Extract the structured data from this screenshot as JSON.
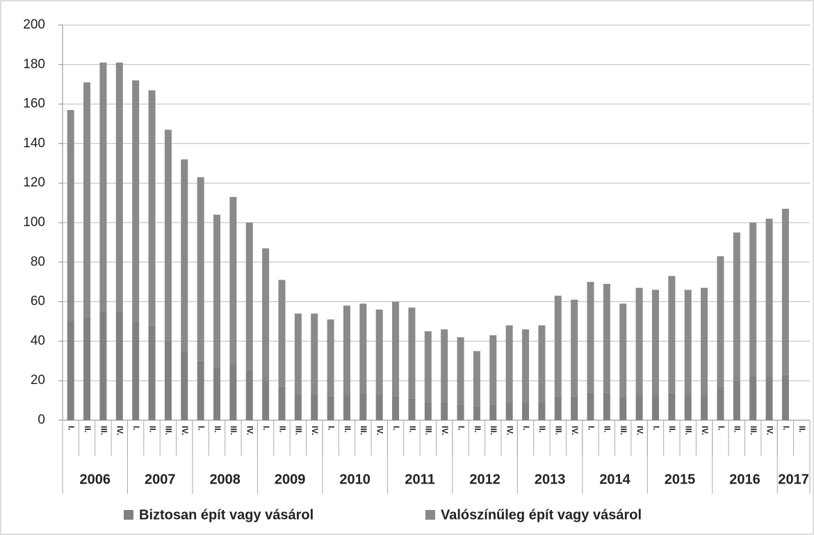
{
  "chart_data": {
    "type": "stacked-bar",
    "categories": [
      "I.",
      "II.",
      "III.",
      "IV.",
      "I.",
      "II.",
      "III.",
      "IV.",
      "I.",
      "II.",
      "III.",
      "IV.",
      "I.",
      "II.",
      "III.",
      "IV.",
      "I.",
      "II.",
      "III.",
      "IV.",
      "I.",
      "II.",
      "III.",
      "IV.",
      "I.",
      "II.",
      "III.",
      "IV.",
      "I.",
      "II.",
      "III.",
      "IV.",
      "I.",
      "II.",
      "III.",
      "IV.",
      "I.",
      "II.",
      "III.",
      "IV.",
      "I.",
      "II.",
      "III.",
      "IV.",
      "I.",
      "II."
    ],
    "years": [
      "2006",
      "2007",
      "2008",
      "2009",
      "2010",
      "2011",
      "2012",
      "2013",
      "2014",
      "2015",
      "2016",
      "2017"
    ],
    "series": [
      {
        "name": "Biztosan épít vagy vásárol",
        "color": "#808080",
        "values": [
          50,
          52,
          55,
          55,
          50,
          48,
          40,
          35,
          30,
          27,
          28,
          25,
          20,
          17,
          13,
          13,
          12,
          13,
          14,
          13,
          12,
          11,
          9,
          9,
          8,
          7,
          8,
          9,
          9,
          9,
          12,
          12,
          14,
          14,
          12,
          13,
          13,
          14,
          13,
          13,
          17,
          20,
          22,
          22,
          23,
          null
        ]
      },
      {
        "name": "Valószínűleg épít vagy vásárol",
        "color": "#8a8a8a",
        "values": [
          107,
          119,
          126,
          126,
          122,
          119,
          107,
          97,
          93,
          77,
          85,
          75,
          67,
          54,
          41,
          41,
          39,
          45,
          45,
          43,
          48,
          46,
          36,
          37,
          34,
          28,
          35,
          39,
          37,
          39,
          51,
          49,
          56,
          55,
          47,
          54,
          53,
          59,
          53,
          54,
          66,
          75,
          78,
          80,
          84,
          null
        ]
      }
    ],
    "ylim": [
      0,
      200
    ],
    "yticks": [
      0,
      20,
      40,
      60,
      80,
      100,
      120,
      140,
      160,
      180,
      200
    ],
    "grid": true
  }
}
